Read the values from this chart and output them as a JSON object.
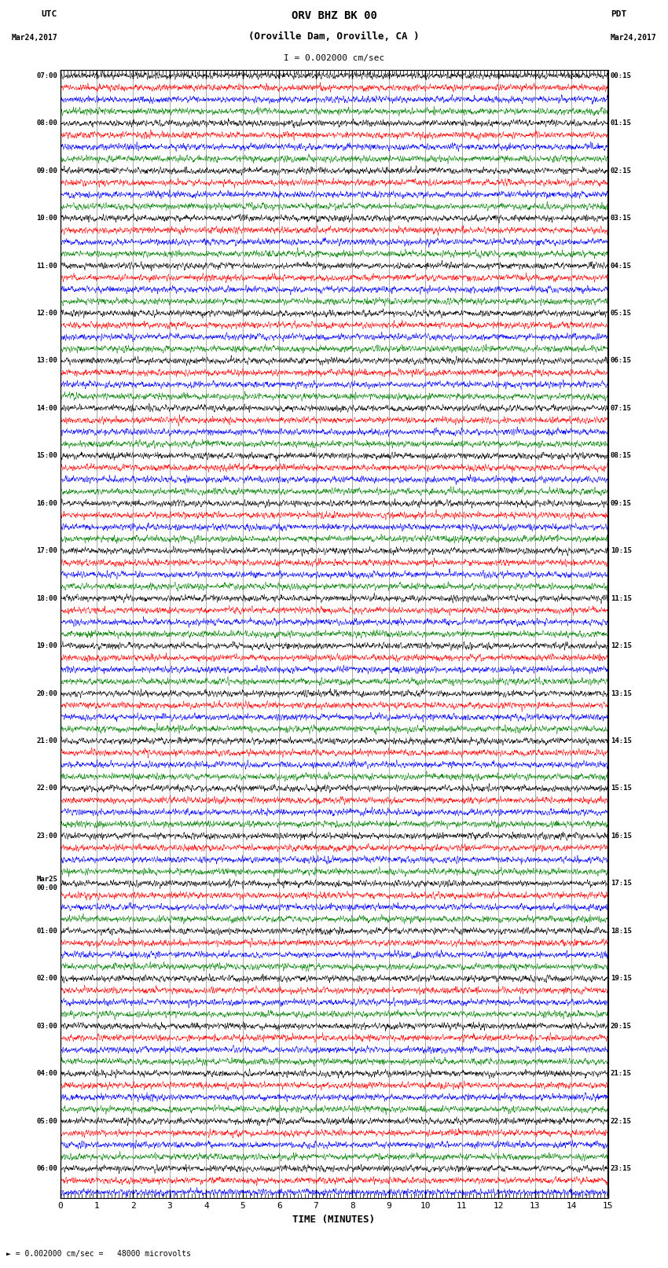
{
  "title_line1": "ORV BHZ BK 00",
  "title_line2": "(Oroville Dam, Oroville, CA )",
  "scale_text": "I = 0.002000 cm/sec",
  "footer_text": "= 0.002000 cm/sec =   48000 microvolts",
  "xlabel": "TIME (MINUTES)",
  "left_header": "UTC",
  "left_date": "Mar24,2017",
  "right_header": "PDT",
  "right_date": "Mar24,2017",
  "xmin": 0,
  "xmax": 15,
  "xticks": [
    0,
    1,
    2,
    3,
    4,
    5,
    6,
    7,
    8,
    9,
    10,
    11,
    12,
    13,
    14,
    15
  ],
  "colors": [
    "black",
    "red",
    "blue",
    "green"
  ],
  "trace_amplitude": 0.12,
  "noise_scale": [
    1.0,
    0.7,
    0.9,
    0.5
  ],
  "bg_color": "white",
  "grid_color": "#888888",
  "n_samples": 2700,
  "left_times": [
    "07:00",
    "",
    "",
    "",
    "08:00",
    "",
    "",
    "",
    "09:00",
    "",
    "",
    "",
    "10:00",
    "",
    "",
    "",
    "11:00",
    "",
    "",
    "",
    "12:00",
    "",
    "",
    "",
    "13:00",
    "",
    "",
    "",
    "14:00",
    "",
    "",
    "",
    "15:00",
    "",
    "",
    "",
    "16:00",
    "",
    "",
    "",
    "17:00",
    "",
    "",
    "",
    "18:00",
    "",
    "",
    "",
    "19:00",
    "",
    "",
    "",
    "20:00",
    "",
    "",
    "",
    "21:00",
    "",
    "",
    "",
    "22:00",
    "",
    "",
    "",
    "23:00",
    "",
    "",
    "",
    "Mar25\n00:00",
    "",
    "",
    "",
    "01:00",
    "",
    "",
    "",
    "02:00",
    "",
    "",
    "",
    "03:00",
    "",
    "",
    "",
    "04:00",
    "",
    "",
    "",
    "05:00",
    "",
    "",
    "",
    "06:00",
    "",
    ""
  ],
  "right_times": [
    "00:15",
    "",
    "",
    "",
    "01:15",
    "",
    "",
    "",
    "02:15",
    "",
    "",
    "",
    "03:15",
    "",
    "",
    "",
    "04:15",
    "",
    "",
    "",
    "05:15",
    "",
    "",
    "",
    "06:15",
    "",
    "",
    "",
    "07:15",
    "",
    "",
    "",
    "08:15",
    "",
    "",
    "",
    "09:15",
    "",
    "",
    "",
    "10:15",
    "",
    "",
    "",
    "11:15",
    "",
    "",
    "",
    "12:15",
    "",
    "",
    "",
    "13:15",
    "",
    "",
    "",
    "14:15",
    "",
    "",
    "",
    "15:15",
    "",
    "",
    "",
    "16:15",
    "",
    "",
    "",
    "17:15",
    "",
    "",
    "",
    "18:15",
    "",
    "",
    "",
    "19:15",
    "",
    "",
    "",
    "20:15",
    "",
    "",
    "",
    "21:15",
    "",
    "",
    "",
    "22:15",
    "",
    "",
    "",
    "23:15",
    "",
    ""
  ]
}
